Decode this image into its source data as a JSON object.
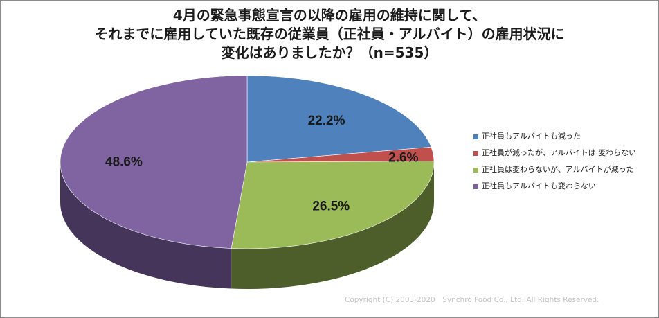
{
  "title_lines": [
    "4月の緊急事態宣言の以降の雇用の維持に関して、",
    "それまでに雇用していた既存の従業員（正社員・アルバイト）の雇用状況に",
    "変化はありましたか？（n=535）"
  ],
  "copyright": "Copyright (C) 2003-2020　Synchro Food Co., Ltd. All Rights Reserved.",
  "chart_data": {
    "type": "pie",
    "style": "3d",
    "title": "4月の緊急事態宣言の以降の雇用の維持に関して、それまでに雇用していた既存の従業員（正社員・アルバイト）の雇用状況に変化はありましたか？（n=535）",
    "legend_position": "right",
    "slices": [
      {
        "label": "正社員もアルバイトも減った",
        "value": 22.2,
        "display": "22.2%",
        "color": "#4f81bd",
        "side_color": "#2c4a70"
      },
      {
        "label": "正社員が減ったが、アルバイトは 変わらない",
        "value": 2.6,
        "display": "2.6%",
        "color": "#c0504d",
        "side_color": "#6e2b2a"
      },
      {
        "label": "正社員は変わらないが、アルバイトが減った",
        "value": 26.5,
        "display": "26.5%",
        "color": "#9bbb59",
        "side_color": "#4d5e2a"
      },
      {
        "label": "正社員もアルバイトも変わらない",
        "value": 48.6,
        "display": "48.6%",
        "color": "#8064a2",
        "side_color": "#45355a"
      }
    ]
  }
}
